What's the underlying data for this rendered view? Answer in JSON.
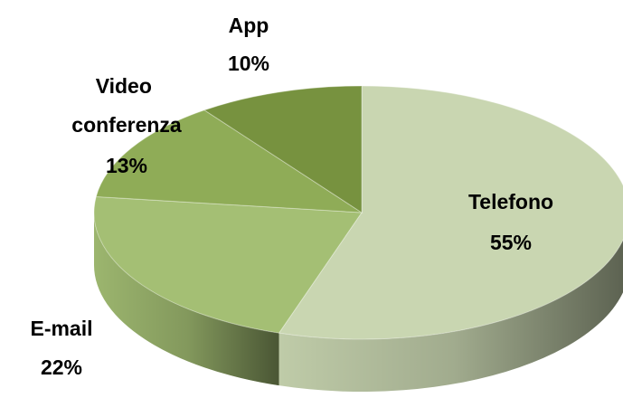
{
  "chart_data": {
    "type": "pie",
    "categories": [
      "Telefono",
      "E-mail",
      "Video conferenza",
      "App"
    ],
    "values": [
      55,
      22,
      13,
      10
    ],
    "value_labels": [
      "55%",
      "22%",
      "13%",
      "10%"
    ],
    "colors": [
      "#c9d6b1",
      "#a4bf74",
      "#8fac57",
      "#77923f"
    ]
  }
}
